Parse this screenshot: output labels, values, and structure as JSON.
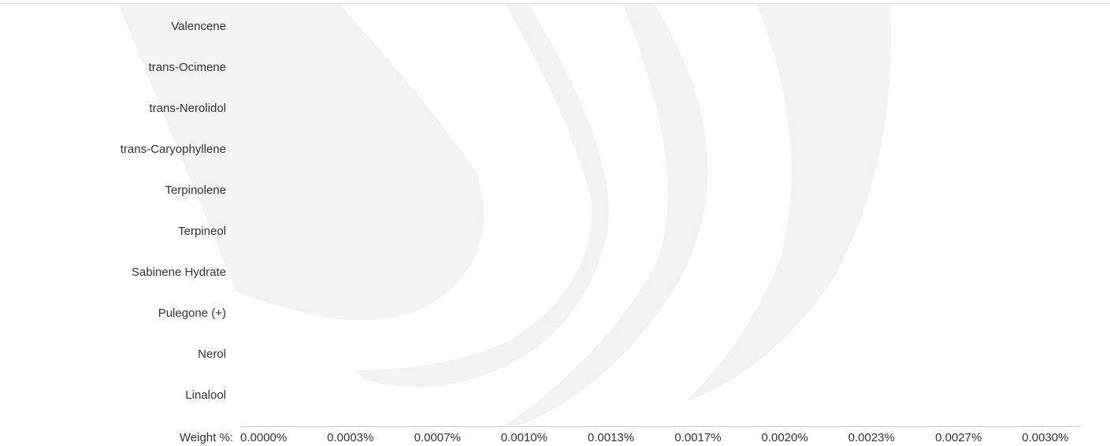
{
  "chart_data": {
    "type": "hbar",
    "xlabel": "Weight %:",
    "categories": [
      "Valencene",
      "trans-Ocimene",
      "trans-Nerolidol",
      "trans-Caryophyllene",
      "Terpinolene",
      "Terpineol",
      "Sabinene Hydrate",
      "Pulegone (+)",
      "Nerol",
      "Linalool"
    ],
    "values": [
      0,
      0,
      0,
      0,
      0,
      0,
      0,
      0,
      0,
      0
    ],
    "color": "#4a90c8",
    "xlim": [
      0,
      0.00322
    ],
    "xticks": [
      {
        "value": 0,
        "label": "0.0000%"
      },
      {
        "value": 0.000333,
        "label": "0.0003%"
      },
      {
        "value": 0.000667,
        "label": "0.0007%"
      },
      {
        "value": 0.001,
        "label": "0.0010%"
      },
      {
        "value": 0.001333,
        "label": "0.0013%"
      },
      {
        "value": 0.001667,
        "label": "0.0017%"
      },
      {
        "value": 0.002,
        "label": "0.0020%"
      },
      {
        "value": 0.002333,
        "label": "0.0023%"
      },
      {
        "value": 0.002667,
        "label": "0.0027%"
      },
      {
        "value": 0.003,
        "label": "0.0030%"
      }
    ],
    "grid": false
  }
}
